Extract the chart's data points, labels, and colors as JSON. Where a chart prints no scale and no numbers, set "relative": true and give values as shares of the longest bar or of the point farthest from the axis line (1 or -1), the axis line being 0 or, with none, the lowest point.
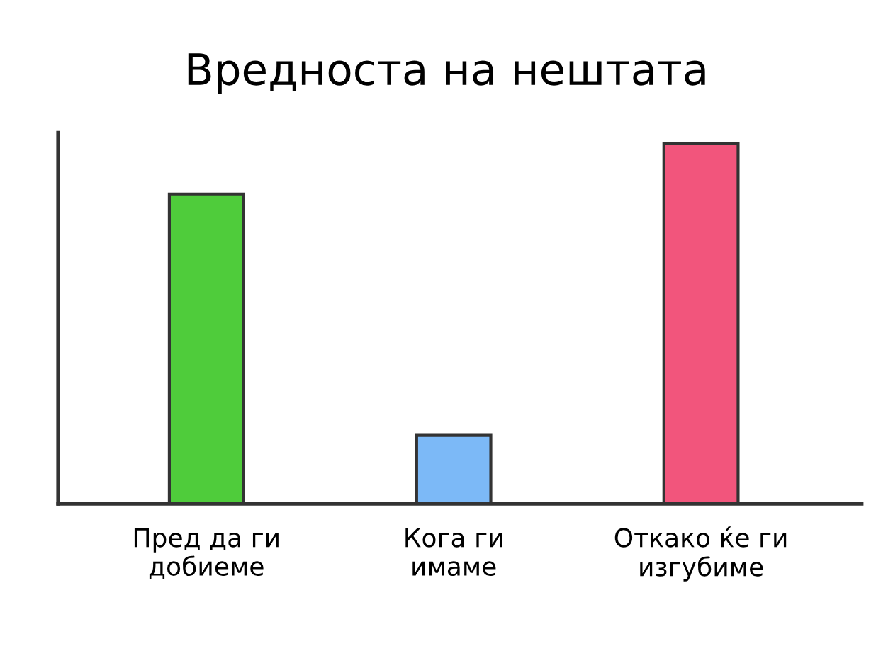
{
  "chart_data": {
    "type": "bar",
    "title": "Вредноста на нештата",
    "categories": [
      "Пред да ги\nдобиеме",
      "Кога ги\nимаме",
      "Откако ќе ги\nизгубиме"
    ],
    "values": [
      0.86,
      0.19,
      1
    ],
    "colors": [
      "#4fcc3b",
      "#7cb9f7",
      "#f2557c"
    ],
    "relative": true,
    "grid": false,
    "legend": false
  }
}
